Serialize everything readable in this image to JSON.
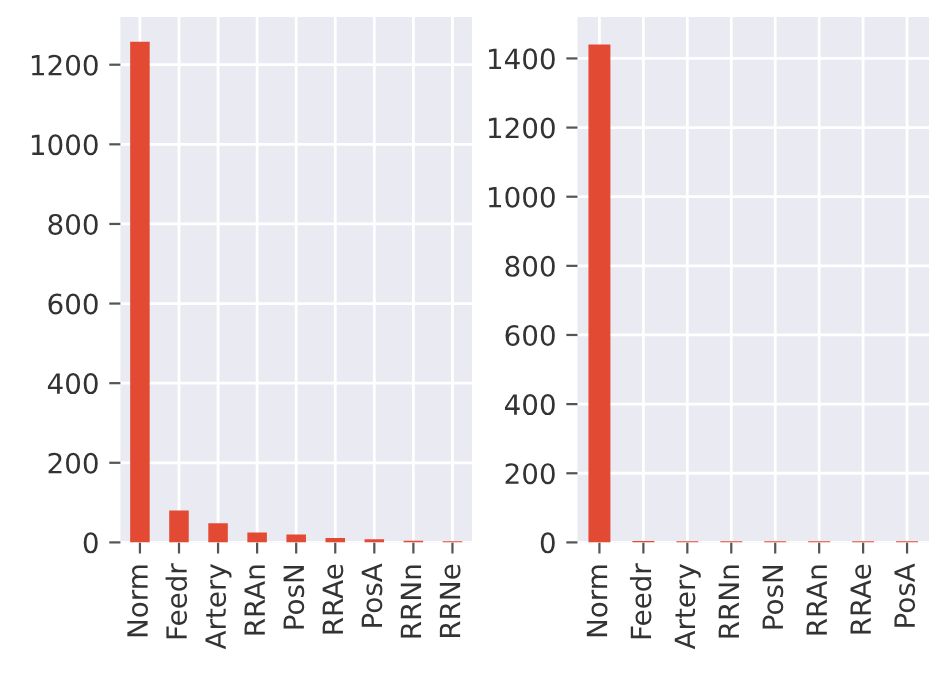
{
  "chart_data": [
    {
      "type": "bar",
      "categories": [
        "Norm",
        "Feedr",
        "Artery",
        "RRAn",
        "PosN",
        "RRAe",
        "PosA",
        "RRNn",
        "RRNe"
      ],
      "values": [
        1258,
        80,
        48,
        25,
        20,
        11,
        8,
        4,
        3
      ],
      "color": "#e24a33",
      "ylim": [
        0,
        1320
      ],
      "yticks": [
        0,
        200,
        400,
        600,
        800,
        1000,
        1200
      ],
      "grid": true
    },
    {
      "type": "bar",
      "categories": [
        "Norm",
        "Feedr",
        "Artery",
        "RRNn",
        "PosN",
        "RRAn",
        "RRAe",
        "PosA"
      ],
      "values": [
        1440,
        4,
        3,
        3,
        3,
        3,
        3,
        3
      ],
      "color": "#e24a33",
      "ylim": [
        0,
        1520
      ],
      "yticks": [
        0,
        200,
        400,
        600,
        800,
        1000,
        1200,
        1400
      ],
      "grid": true
    }
  ]
}
